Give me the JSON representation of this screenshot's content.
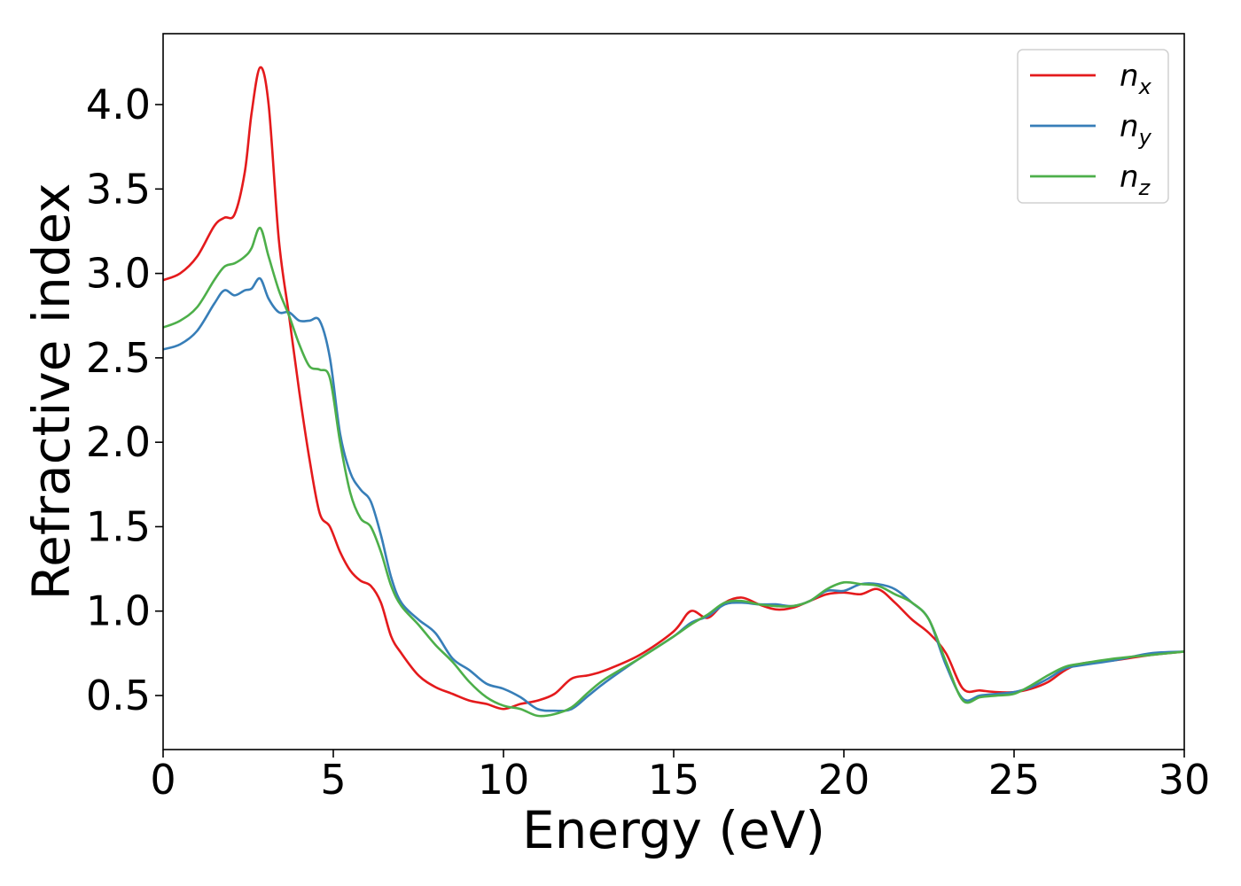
{
  "chart_data": {
    "type": "line",
    "title": "",
    "xlabel": "Energy (eV)",
    "ylabel": "Refractive index",
    "xlim": [
      0,
      30
    ],
    "ylim": [
      0.18,
      4.42
    ],
    "xticks": [
      0,
      5,
      10,
      15,
      20,
      25,
      30
    ],
    "xtick_labels": [
      "0",
      "5",
      "10",
      "15",
      "20",
      "25",
      "30"
    ],
    "yticks": [
      0.5,
      1.0,
      1.5,
      2.0,
      2.5,
      3.0,
      3.5,
      4.0
    ],
    "ytick_labels": [
      "0.5",
      "1.0",
      "1.5",
      "2.0",
      "2.5",
      "3.0",
      "3.5",
      "4.0"
    ],
    "grid": false,
    "legend": "top-right",
    "series": [
      {
        "name": "n",
        "sub": "x",
        "color": "#e41a1c",
        "x": [
          0,
          0.5,
          1.0,
          1.5,
          1.8,
          2.1,
          2.4,
          2.6,
          2.85,
          3.1,
          3.4,
          3.7,
          4.0,
          4.3,
          4.6,
          4.9,
          5.2,
          5.5,
          5.8,
          6.1,
          6.4,
          6.7,
          7.0,
          7.5,
          8.0,
          8.5,
          9.0,
          9.5,
          10.0,
          10.5,
          11.0,
          11.5,
          12.0,
          12.5,
          13.0,
          14.0,
          15.0,
          15.5,
          16.0,
          16.5,
          17.0,
          17.5,
          18.0,
          18.5,
          19.0,
          19.5,
          20.0,
          20.5,
          21.0,
          21.5,
          22.0,
          22.5,
          23.0,
          23.5,
          24.0,
          24.5,
          25.0,
          25.5,
          26.0,
          26.5,
          27.0,
          28.0,
          29.0,
          30.0
        ],
        "y": [
          2.96,
          3.0,
          3.1,
          3.28,
          3.33,
          3.35,
          3.6,
          3.95,
          4.22,
          4.0,
          3.2,
          2.75,
          2.3,
          1.9,
          1.58,
          1.5,
          1.35,
          1.24,
          1.18,
          1.15,
          1.05,
          0.85,
          0.75,
          0.62,
          0.55,
          0.51,
          0.47,
          0.45,
          0.42,
          0.45,
          0.47,
          0.51,
          0.6,
          0.62,
          0.65,
          0.74,
          0.88,
          1.0,
          0.96,
          1.05,
          1.08,
          1.04,
          1.01,
          1.02,
          1.06,
          1.1,
          1.11,
          1.1,
          1.13,
          1.05,
          0.95,
          0.87,
          0.75,
          0.54,
          0.53,
          0.52,
          0.52,
          0.54,
          0.58,
          0.65,
          0.69,
          0.71,
          0.74,
          0.76
        ]
      },
      {
        "name": "n",
        "sub": "y",
        "color": "#377eb8",
        "x": [
          0,
          0.5,
          1.0,
          1.5,
          1.8,
          2.1,
          2.4,
          2.6,
          2.85,
          3.1,
          3.4,
          3.7,
          4.0,
          4.3,
          4.6,
          4.9,
          5.2,
          5.5,
          5.8,
          6.1,
          6.4,
          6.7,
          7.0,
          7.5,
          8.0,
          8.5,
          9.0,
          9.5,
          10.0,
          10.5,
          11.0,
          11.5,
          12.0,
          12.5,
          13.0,
          14.0,
          15.0,
          15.5,
          16.0,
          16.5,
          17.0,
          17.5,
          18.0,
          18.5,
          19.0,
          19.5,
          20.0,
          20.5,
          21.0,
          21.5,
          22.0,
          22.5,
          23.0,
          23.5,
          24.0,
          24.5,
          25.0,
          25.5,
          26.0,
          26.5,
          27.0,
          28.0,
          29.0,
          30.0
        ],
        "y": [
          2.55,
          2.58,
          2.66,
          2.82,
          2.9,
          2.87,
          2.9,
          2.91,
          2.97,
          2.85,
          2.77,
          2.77,
          2.72,
          2.72,
          2.72,
          2.5,
          2.05,
          1.82,
          1.72,
          1.65,
          1.45,
          1.2,
          1.05,
          0.95,
          0.87,
          0.72,
          0.65,
          0.57,
          0.54,
          0.49,
          0.42,
          0.41,
          0.42,
          0.5,
          0.58,
          0.72,
          0.85,
          0.93,
          0.97,
          1.04,
          1.05,
          1.04,
          1.04,
          1.03,
          1.06,
          1.12,
          1.12,
          1.16,
          1.16,
          1.13,
          1.05,
          0.95,
          0.68,
          0.48,
          0.5,
          0.51,
          0.52,
          0.55,
          0.6,
          0.66,
          0.68,
          0.71,
          0.75,
          0.76
        ]
      },
      {
        "name": "n",
        "sub": "z",
        "color": "#4daf4a",
        "x": [
          0,
          0.5,
          1.0,
          1.5,
          1.8,
          2.1,
          2.4,
          2.6,
          2.85,
          3.1,
          3.4,
          3.7,
          4.0,
          4.3,
          4.6,
          4.9,
          5.2,
          5.5,
          5.8,
          6.1,
          6.4,
          6.7,
          7.0,
          7.5,
          8.0,
          8.5,
          9.0,
          9.5,
          10.0,
          10.5,
          11.0,
          11.5,
          12.0,
          12.5,
          13.0,
          14.0,
          15.0,
          15.5,
          16.0,
          16.5,
          17.0,
          17.5,
          18.0,
          18.5,
          19.0,
          19.5,
          20.0,
          20.5,
          21.0,
          21.5,
          22.0,
          22.5,
          23.0,
          23.5,
          24.0,
          24.5,
          25.0,
          25.5,
          26.0,
          26.5,
          27.0,
          28.0,
          29.0,
          30.0
        ],
        "y": [
          2.68,
          2.72,
          2.8,
          2.96,
          3.04,
          3.06,
          3.1,
          3.15,
          3.27,
          3.1,
          2.9,
          2.75,
          2.58,
          2.45,
          2.43,
          2.38,
          2.0,
          1.7,
          1.55,
          1.5,
          1.35,
          1.15,
          1.03,
          0.92,
          0.8,
          0.7,
          0.58,
          0.49,
          0.44,
          0.42,
          0.38,
          0.39,
          0.43,
          0.52,
          0.6,
          0.72,
          0.85,
          0.92,
          0.98,
          1.05,
          1.06,
          1.04,
          1.03,
          1.03,
          1.06,
          1.13,
          1.17,
          1.16,
          1.15,
          1.1,
          1.05,
          0.95,
          0.7,
          0.47,
          0.49,
          0.5,
          0.51,
          0.56,
          0.62,
          0.67,
          0.69,
          0.72,
          0.74,
          0.76
        ]
      }
    ]
  }
}
